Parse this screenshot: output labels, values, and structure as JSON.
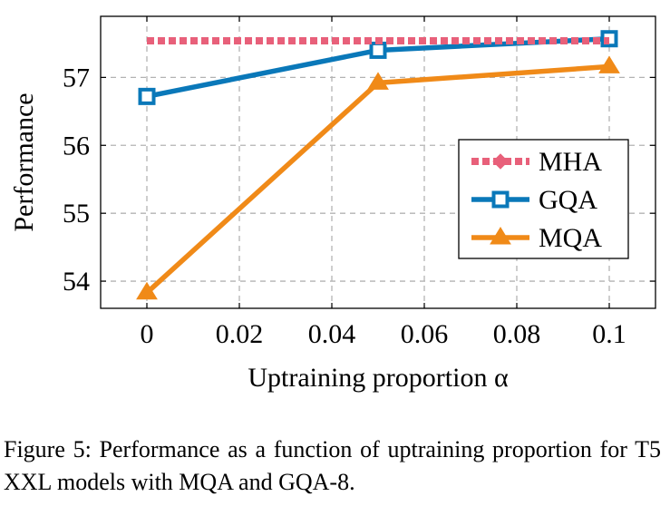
{
  "chart_data": {
    "type": "line",
    "title": "",
    "xlabel": "Uptraining proportion α",
    "ylabel": "Performance",
    "x": [
      0,
      0.05,
      0.1
    ],
    "xticks": [
      0,
      0.02,
      0.04,
      0.06,
      0.08,
      0.1
    ],
    "xtick_labels": [
      "0",
      "0.02",
      "0.04",
      "0.06",
      "0.08",
      "0.1"
    ],
    "yticks": [
      54,
      55,
      56,
      57
    ],
    "ytick_labels": [
      "54",
      "55",
      "56",
      "57"
    ],
    "xlim": [
      -0.01,
      0.11
    ],
    "ylim": [
      53.6,
      57.9
    ],
    "grid": true,
    "legend_position": "right",
    "series": [
      {
        "name": "MHA",
        "x": [
          0,
          0.1
        ],
        "values": [
          57.54,
          57.54
        ],
        "color": "#e8607a",
        "style": "dotted",
        "marker": "diamond"
      },
      {
        "name": "GQA",
        "x": [
          0,
          0.05,
          0.1
        ],
        "values": [
          56.72,
          57.4,
          57.57
        ],
        "color": "#0a78b9",
        "style": "solid",
        "marker": "square"
      },
      {
        "name": "MQA",
        "x": [
          0,
          0.05,
          0.1
        ],
        "values": [
          53.83,
          56.92,
          57.16
        ],
        "color": "#f08a18",
        "style": "solid",
        "marker": "triangle"
      }
    ]
  },
  "caption": "Figure 5: Performance as a function of uptraining proportion for T5 XXL models with MQA and GQA-8."
}
